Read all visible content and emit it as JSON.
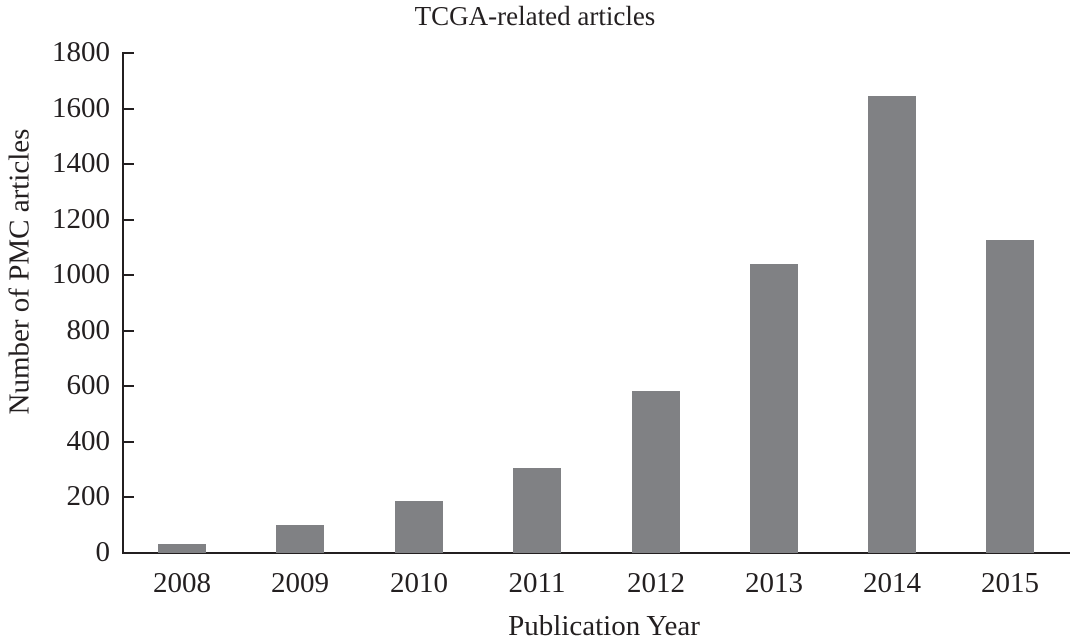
{
  "chart_data": {
    "type": "bar",
    "title": "TCGA-related articles",
    "xlabel": "Publication Year",
    "ylabel": "Number of PMC articles",
    "categories": [
      "2008",
      "2009",
      "2010",
      "2011",
      "2012",
      "2013",
      "2014",
      "2015"
    ],
    "values": [
      32,
      100,
      187,
      306,
      583,
      1040,
      1645,
      1127
    ],
    "ylim": [
      0,
      1800
    ],
    "yticks": [
      "0",
      "200",
      "400",
      "600",
      "800",
      "1000",
      "1200",
      "1400",
      "1600",
      "1800"
    ],
    "grid": false,
    "legend": null,
    "bar_color": "#808184"
  }
}
